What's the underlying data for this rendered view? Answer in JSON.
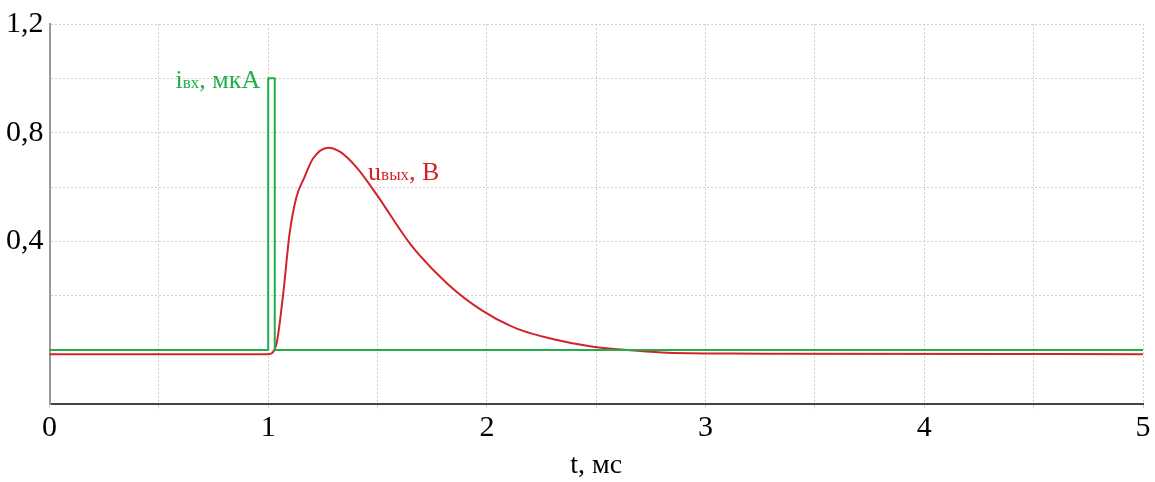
{
  "chart_data": {
    "type": "line",
    "xlabel": "t, мс",
    "xlim": [
      0,
      5
    ],
    "ylim": [
      -0.2,
      1.2
    ],
    "xticks": [
      0,
      {
        "value": 0.5,
        "label": null
      },
      1,
      {
        "value": 1.5,
        "label": null
      },
      2,
      {
        "value": 2.5,
        "label": null
      },
      3,
      {
        "value": 3.5,
        "label": null
      },
      4,
      {
        "value": 4.5,
        "label": null
      },
      5
    ],
    "yticks": [
      {
        "value": -0.2,
        "label": null
      },
      {
        "value": 0,
        "label": null
      },
      {
        "value": 0.2,
        "label": null
      },
      {
        "value": 0.4,
        "label": "0,4"
      },
      {
        "value": 0.6,
        "label": null
      },
      {
        "value": 0.8,
        "label": "0,8"
      },
      {
        "value": 1.0,
        "label": null
      },
      {
        "value": 1.2,
        "label": "1,2"
      }
    ],
    "grid": true,
    "legend": false,
    "line_style": "solid",
    "series": [
      {
        "name": "i$_{вх}$, мкА",
        "color": "#1fae4a",
        "type": "step",
        "x": [
          0,
          1,
          1.03,
          5
        ],
        "values": [
          0,
          1,
          0,
          0
        ]
      },
      {
        "name": "u$_{вых}$, В",
        "color": "#d3222a",
        "x": [
          0,
          1,
          1.036,
          1.067,
          1.098,
          1.128,
          1.164,
          1.205,
          1.274,
          1.328,
          1.404,
          1.496,
          1.65,
          1.818,
          1.979,
          2.14,
          2.31,
          2.478,
          2.639,
          2.8,
          3.12,
          5
        ],
        "values": [
          -0.015,
          -0.015,
          0.017,
          0.196,
          0.43,
          0.56,
          0.633,
          0.705,
          0.745,
          0.73,
          0.672,
          0.572,
          0.39,
          0.245,
          0.145,
          0.078,
          0.039,
          0.013,
          0,
          -0.009,
          -0.013,
          -0.015
        ]
      }
    ]
  }
}
